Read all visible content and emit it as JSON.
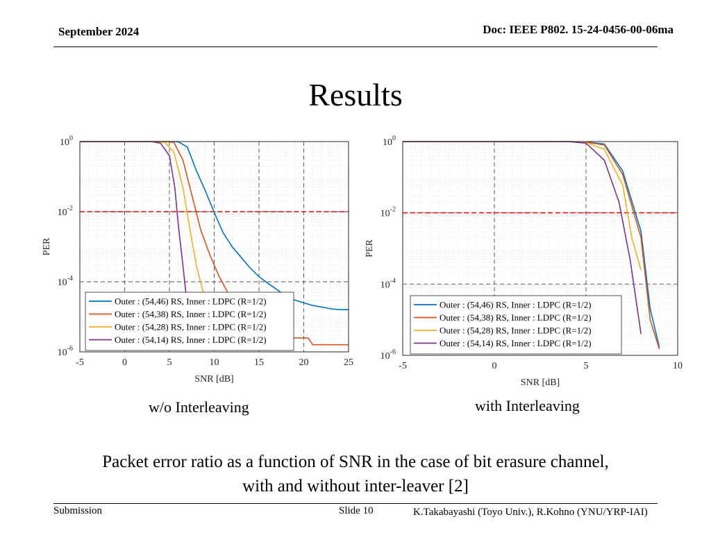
{
  "header": {
    "date": "September 2024",
    "doc": "Doc: IEEE P802. 15-24-0456-00-06ma"
  },
  "slide": {
    "title": "Results"
  },
  "labels": {
    "left": "w/o Interleaving",
    "right": "with Interleaving"
  },
  "caption": {
    "line1": "Packet error ratio as a function of SNR in the case of bit erasure channel,",
    "line2": "with and without inter-leaver [2]"
  },
  "footer": {
    "submission": "Submission",
    "slide": "Slide 10",
    "authors": "K.Takabayashi (Toyo Univ.), R.Kohno (YNU/YRP-IAI)"
  },
  "colors": {
    "s1": "#0072BD",
    "s2": "#D95319",
    "s3": "#EDB120",
    "s4": "#7E2F8E",
    "threshold": "#FF0000"
  },
  "chart_data": [
    {
      "type": "line",
      "xlabel": "SNR [dB]",
      "ylabel": "PER",
      "xlim": [
        -5,
        25
      ],
      "ylim": [
        1e-06,
        1
      ],
      "yscale": "log",
      "xticks": [
        -5,
        0,
        5,
        10,
        15,
        20,
        25
      ],
      "yticks": [
        {
          "value": 1,
          "base": "10",
          "exp": "0"
        },
        {
          "value": 0.01,
          "base": "10",
          "exp": "-2"
        },
        {
          "value": 0.0001,
          "base": "10",
          "exp": "-4"
        },
        {
          "value": 1e-06,
          "base": "10",
          "exp": "-6"
        }
      ],
      "grid": true,
      "legend_position": "bottom-left",
      "threshold": 0.01,
      "series": [
        {
          "name": "Outer : (54,46) RS, Inner : LDPC (R=1/2)",
          "color": "#0072BD",
          "x": [
            -5,
            0,
            3,
            5,
            6,
            7,
            8,
            9,
            10,
            11,
            12,
            13,
            14,
            15,
            16,
            17,
            18,
            19,
            20,
            21,
            22,
            23,
            24,
            25
          ],
          "y": [
            1,
            1,
            1,
            1,
            0.98,
            0.7,
            0.15,
            0.04,
            0.0095,
            0.0025,
            0.001,
            0.0005,
            0.00025,
            0.00014,
            9e-05,
            6e-05,
            4e-05,
            3e-05,
            2.5e-05,
            2.1e-05,
            1.9e-05,
            1.7e-05,
            1.6e-05,
            1.6e-05
          ]
        },
        {
          "name": "Outer : (54,38) RS, Inner : LDPC (R=1/2)",
          "color": "#D95319",
          "x": [
            -5,
            0,
            3,
            4.5,
            5.5,
            6.5,
            7.5,
            8.5,
            9.5,
            10.5,
            11.5,
            12.5,
            14,
            16,
            18,
            20,
            20.5,
            21,
            25
          ],
          "y": [
            1,
            1,
            1,
            1,
            0.95,
            0.3,
            0.03,
            0.003,
            0.0006,
            0.00015,
            5e-05,
            2e-05,
            8e-06,
            4e-06,
            2.5e-06,
            2.5e-06,
            2.5e-06,
            1.6e-06,
            1.6e-06
          ]
        },
        {
          "name": "Outer : (54,28) RS, Inner : LDPC (R=1/2)",
          "color": "#EDB120",
          "x": [
            -5,
            0,
            3,
            4.5,
            5.5,
            6.5,
            7.3,
            8,
            9,
            9.6,
            10
          ],
          "y": [
            1,
            1,
            1,
            0.95,
            0.5,
            0.05,
            0.003,
            0.0003,
            3e-05,
            6e-06,
            1e-06
          ]
        },
        {
          "name": "Outer : (54,14) RS, Inner : LDPC (R=1/2)",
          "color": "#7E2F8E",
          "x": [
            -5,
            0,
            3,
            4,
            5,
            5.6,
            6,
            6.5,
            7,
            7.3
          ],
          "y": [
            1,
            1,
            1,
            0.9,
            0.4,
            0.05,
            0.004,
            0.0003,
            2e-05,
            3e-06
          ]
        }
      ]
    },
    {
      "type": "line",
      "xlabel": "SNR [dB]",
      "ylabel": "PER",
      "xlim": [
        -5,
        10
      ],
      "ylim": [
        1e-06,
        1
      ],
      "yscale": "log",
      "xticks": [
        -5,
        0,
        5,
        10
      ],
      "yticks": [
        {
          "value": 1,
          "base": "10",
          "exp": "0"
        },
        {
          "value": 0.01,
          "base": "10",
          "exp": "-2"
        },
        {
          "value": 0.0001,
          "base": "10",
          "exp": "-4"
        },
        {
          "value": 1e-06,
          "base": "10",
          "exp": "-6"
        }
      ],
      "grid": true,
      "legend_position": "bottom-left",
      "threshold": 0.01,
      "series": [
        {
          "name": "Outer : (54,46) RS, Inner : LDPC (R=1/2)",
          "color": "#0072BD",
          "x": [
            -5,
            0,
            4,
            5,
            6,
            7,
            8,
            8.5,
            9
          ],
          "y": [
            1,
            1,
            1,
            0.98,
            0.85,
            0.15,
            0.003,
            2e-05,
            1.7e-06
          ]
        },
        {
          "name": "Outer : (54,38) RS, Inner : LDPC (R=1/2)",
          "color": "#D95319",
          "x": [
            -5,
            0,
            4,
            5,
            6,
            7,
            8,
            8.5,
            9
          ],
          "y": [
            1,
            1,
            1,
            0.97,
            0.8,
            0.12,
            0.002,
            1e-05,
            1.5e-06
          ]
        },
        {
          "name": "Outer : (54,28) RS, Inner : LDPC (R=1/2)",
          "color": "#EDB120",
          "x": [
            -5,
            0,
            4,
            5,
            6,
            7,
            7.5,
            8
          ],
          "y": [
            1,
            1,
            1,
            0.95,
            0.6,
            0.06,
            0.002,
            0.00025
          ]
        },
        {
          "name": "Outer : (54,14) RS, Inner : LDPC (R=1/2)",
          "color": "#7E2F8E",
          "x": [
            -5,
            0,
            4,
            5,
            6,
            6.8,
            7.4,
            8
          ],
          "y": [
            1,
            1,
            1,
            0.9,
            0.3,
            0.02,
            0.0005,
            4e-06
          ]
        }
      ]
    }
  ]
}
